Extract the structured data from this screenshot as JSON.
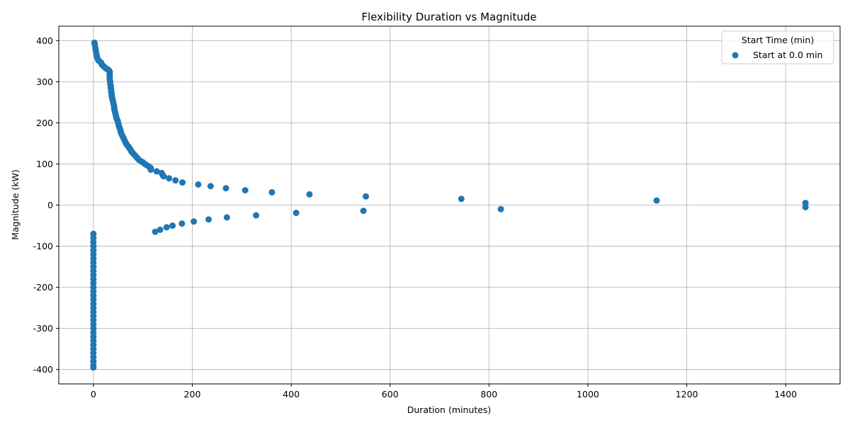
{
  "chart_data": {
    "type": "scatter",
    "title": "Flexibility Duration vs Magnitude",
    "xlabel": "Duration (minutes)",
    "ylabel": "Magnitude (kW)",
    "xlim": [
      -70,
      1510
    ],
    "ylim": [
      -435,
      435
    ],
    "x_ticks": [
      0,
      200,
      400,
      600,
      800,
      1000,
      1200,
      1400
    ],
    "y_ticks": [
      -400,
      -300,
      -200,
      -100,
      0,
      100,
      200,
      300,
      400
    ],
    "grid": true,
    "legend": {
      "title": "Start Time (min)",
      "placement": "top-right"
    },
    "series": [
      {
        "name": "Start at 0.0 min",
        "color": "#1f77b4",
        "points": [
          [
            2,
            395
          ],
          [
            3,
            390
          ],
          [
            4,
            382
          ],
          [
            5,
            375
          ],
          [
            6,
            368
          ],
          [
            7,
            362
          ],
          [
            8,
            357
          ],
          [
            10,
            352
          ],
          [
            12,
            350
          ],
          [
            15,
            347
          ],
          [
            17,
            342
          ],
          [
            20,
            338
          ],
          [
            23,
            335
          ],
          [
            26,
            332
          ],
          [
            29,
            330
          ],
          [
            31,
            328
          ],
          [
            32,
            326
          ],
          [
            33,
            324
          ],
          [
            33,
            320
          ],
          [
            33,
            315
          ],
          [
            33,
            310
          ],
          [
            33,
            305
          ],
          [
            34,
            300
          ],
          [
            34,
            295
          ],
          [
            35,
            290
          ],
          [
            35,
            285
          ],
          [
            36,
            280
          ],
          [
            36,
            275
          ],
          [
            37,
            270
          ],
          [
            37,
            265
          ],
          [
            38,
            260
          ],
          [
            39,
            255
          ],
          [
            40,
            250
          ],
          [
            41,
            245
          ],
          [
            42,
            240
          ],
          [
            42,
            235
          ],
          [
            43,
            230
          ],
          [
            44,
            225
          ],
          [
            45,
            220
          ],
          [
            46,
            215
          ],
          [
            47,
            210
          ],
          [
            49,
            205
          ],
          [
            50,
            200
          ],
          [
            51,
            195
          ],
          [
            52,
            190
          ],
          [
            54,
            185
          ],
          [
            55,
            180
          ],
          [
            56,
            175
          ],
          [
            58,
            170
          ],
          [
            60,
            165
          ],
          [
            62,
            160
          ],
          [
            64,
            155
          ],
          [
            66,
            150
          ],
          [
            68,
            146
          ],
          [
            71,
            142
          ],
          [
            73,
            138
          ],
          [
            75,
            135
          ],
          [
            77,
            130
          ],
          [
            80,
            126
          ],
          [
            83,
            122
          ],
          [
            86,
            118
          ],
          [
            89,
            114
          ],
          [
            92,
            110
          ],
          [
            97,
            106
          ],
          [
            100,
            104
          ],
          [
            104,
            100
          ],
          [
            108,
            97
          ],
          [
            112,
            94
          ],
          [
            116,
            90
          ],
          [
            116,
            86
          ],
          [
            128,
            82
          ],
          [
            138,
            78
          ],
          [
            140,
            73
          ],
          [
            142,
            70
          ],
          [
            153,
            65
          ],
          [
            166,
            60
          ],
          [
            180,
            55
          ],
          [
            212,
            50
          ],
          [
            237,
            46
          ],
          [
            268,
            41
          ],
          [
            307,
            36
          ],
          [
            361,
            31
          ],
          [
            437,
            26
          ],
          [
            551,
            21
          ],
          [
            744,
            15
          ],
          [
            1139,
            11
          ],
          [
            1440,
            5
          ],
          [
            1440,
            -5
          ],
          [
            824,
            -10
          ],
          [
            546,
            -14
          ],
          [
            410,
            -19
          ],
          [
            329,
            -25
          ],
          [
            270,
            -30
          ],
          [
            233,
            -35
          ],
          [
            203,
            -40
          ],
          [
            179,
            -45
          ],
          [
            160,
            -50
          ],
          [
            148,
            -54
          ],
          [
            135,
            -60
          ],
          [
            125,
            -65
          ],
          [
            0,
            -70
          ],
          [
            0,
            -80
          ],
          [
            0,
            -90
          ],
          [
            0,
            -100
          ],
          [
            0,
            -110
          ],
          [
            0,
            -120
          ],
          [
            0,
            -130
          ],
          [
            0,
            -140
          ],
          [
            0,
            -150
          ],
          [
            0,
            -160
          ],
          [
            0,
            -170
          ],
          [
            0,
            -180
          ],
          [
            0,
            -190
          ],
          [
            0,
            -200
          ],
          [
            0,
            -210
          ],
          [
            0,
            -220
          ],
          [
            0,
            -230
          ],
          [
            0,
            -240
          ],
          [
            0,
            -250
          ],
          [
            0,
            -260
          ],
          [
            0,
            -270
          ],
          [
            0,
            -280
          ],
          [
            0,
            -290
          ],
          [
            0,
            -300
          ],
          [
            0,
            -310
          ],
          [
            0,
            -320
          ],
          [
            0,
            -330
          ],
          [
            0,
            -340
          ],
          [
            0,
            -350
          ],
          [
            0,
            -360
          ],
          [
            0,
            -370
          ],
          [
            0,
            -380
          ],
          [
            0,
            -390
          ],
          [
            0,
            -395
          ]
        ]
      }
    ]
  }
}
